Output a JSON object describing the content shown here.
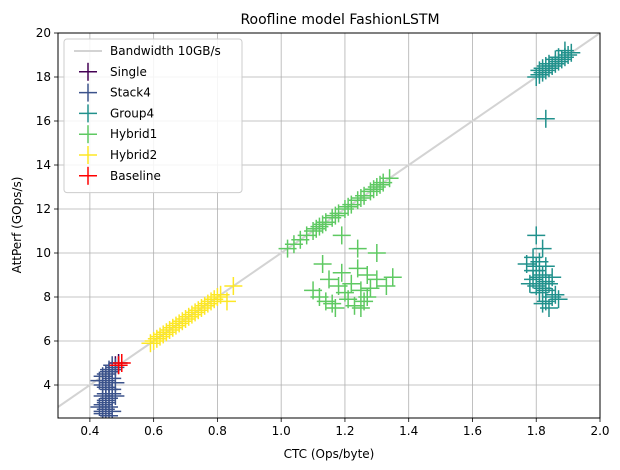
{
  "chart_data": {
    "type": "scatter",
    "title": "Roofline model FashionLSTM",
    "xlabel": "CTC (Ops/byte)",
    "ylabel": "AttPerf (GOps/s)",
    "xlim": [
      0.3,
      2.0
    ],
    "ylim": [
      2.5,
      20
    ],
    "xticks": [
      "0.4",
      "0.6",
      "0.8",
      "1.0",
      "1.2",
      "1.4",
      "1.6",
      "1.8",
      "2.0"
    ],
    "yticks": [
      "4",
      "6",
      "8",
      "10",
      "12",
      "14",
      "16",
      "18",
      "20"
    ],
    "grid": true,
    "legend_position": "top-left",
    "bandwidth_line": {
      "name": "Bandwidth 10GB/s",
      "slope": 10,
      "color": "#d3d3d3"
    },
    "series": [
      {
        "name": "Single",
        "color": "#440154",
        "points": [
          [
            0.48,
            4.9
          ],
          [
            0.49,
            5.0
          ]
        ]
      },
      {
        "name": "Stack4",
        "color": "#3b528b",
        "points": [
          [
            0.45,
            4.5
          ],
          [
            0.46,
            4.6
          ],
          [
            0.47,
            4.7
          ],
          [
            0.48,
            4.8
          ],
          [
            0.49,
            4.9
          ],
          [
            0.47,
            4.9
          ],
          [
            0.46,
            4.7
          ],
          [
            0.44,
            4.4
          ],
          [
            0.45,
            4.2
          ],
          [
            0.46,
            4.1
          ],
          [
            0.44,
            4.0
          ],
          [
            0.45,
            3.9
          ],
          [
            0.47,
            3.8
          ],
          [
            0.45,
            3.6
          ],
          [
            0.44,
            3.5
          ],
          [
            0.46,
            3.4
          ],
          [
            0.45,
            3.2
          ],
          [
            0.44,
            3.1
          ],
          [
            0.46,
            3.0
          ],
          [
            0.45,
            2.9
          ],
          [
            0.47,
            2.8
          ],
          [
            0.44,
            2.7
          ],
          [
            0.46,
            2.6
          ],
          [
            0.45,
            3.3
          ],
          [
            0.47,
            3.6
          ],
          [
            0.43,
            3.0
          ],
          [
            0.48,
            3.5
          ],
          [
            0.43,
            4.2
          ],
          [
            0.47,
            4.3
          ],
          [
            0.48,
            4.1
          ],
          [
            0.44,
            2.8
          ],
          [
            0.46,
            3.8
          ]
        ]
      },
      {
        "name": "Group4",
        "color": "#21918c",
        "points": [
          [
            1.8,
            18.0
          ],
          [
            1.81,
            18.1
          ],
          [
            1.82,
            18.2
          ],
          [
            1.83,
            18.3
          ],
          [
            1.84,
            18.4
          ],
          [
            1.85,
            18.5
          ],
          [
            1.86,
            18.6
          ],
          [
            1.87,
            18.7
          ],
          [
            1.88,
            18.8
          ],
          [
            1.89,
            18.9
          ],
          [
            1.9,
            19.0
          ],
          [
            1.91,
            19.1
          ],
          [
            1.89,
            19.2
          ],
          [
            1.86,
            18.8
          ],
          [
            1.84,
            18.6
          ],
          [
            1.87,
            18.9
          ],
          [
            1.83,
            18.5
          ],
          [
            1.82,
            18.4
          ],
          [
            1.81,
            18.3
          ],
          [
            1.83,
            16.1
          ],
          [
            1.8,
            10.8
          ],
          [
            1.82,
            10.2
          ],
          [
            1.79,
            9.8
          ],
          [
            1.81,
            9.6
          ],
          [
            1.77,
            9.5
          ],
          [
            1.83,
            9.4
          ],
          [
            1.8,
            9.2
          ],
          [
            1.82,
            9.0
          ],
          [
            1.79,
            8.8
          ],
          [
            1.84,
            8.6
          ],
          [
            1.8,
            8.5
          ],
          [
            1.83,
            8.3
          ],
          [
            1.81,
            8.2
          ],
          [
            1.85,
            8.0
          ],
          [
            1.87,
            7.9
          ],
          [
            1.82,
            7.7
          ],
          [
            1.84,
            7.5
          ],
          [
            1.78,
            8.6
          ],
          [
            1.81,
            8.9
          ],
          [
            1.83,
            8.7
          ],
          [
            1.8,
            9.4
          ],
          [
            1.85,
            8.9
          ],
          [
            1.82,
            8.4
          ],
          [
            1.79,
            9.2
          ],
          [
            1.86,
            8.1
          ],
          [
            1.83,
            7.8
          ]
        ]
      },
      {
        "name": "Hybrid1",
        "color": "#5ec962",
        "points": [
          [
            1.08,
            10.8
          ],
          [
            1.1,
            11.0
          ],
          [
            1.12,
            11.2
          ],
          [
            1.14,
            11.4
          ],
          [
            1.16,
            11.6
          ],
          [
            1.18,
            11.8
          ],
          [
            1.2,
            12.0
          ],
          [
            1.22,
            12.2
          ],
          [
            1.24,
            12.4
          ],
          [
            1.26,
            12.6
          ],
          [
            1.28,
            12.8
          ],
          [
            1.3,
            13.0
          ],
          [
            1.32,
            13.2
          ],
          [
            1.34,
            13.4
          ],
          [
            1.11,
            11.1
          ],
          [
            1.13,
            11.3
          ],
          [
            1.17,
            11.7
          ],
          [
            1.21,
            12.1
          ],
          [
            1.25,
            12.5
          ],
          [
            1.29,
            12.9
          ],
          [
            1.31,
            13.1
          ],
          [
            1.06,
            10.6
          ],
          [
            1.04,
            10.4
          ],
          [
            1.02,
            10.2
          ],
          [
            1.19,
            10.8
          ],
          [
            1.24,
            10.2
          ],
          [
            1.13,
            9.5
          ],
          [
            1.3,
            10.0
          ],
          [
            1.15,
            8.8
          ],
          [
            1.18,
            8.5
          ],
          [
            1.2,
            8.2
          ],
          [
            1.22,
            8.6
          ],
          [
            1.25,
            8.3
          ],
          [
            1.27,
            8.0
          ],
          [
            1.12,
            8.0
          ],
          [
            1.14,
            7.8
          ],
          [
            1.16,
            7.7
          ],
          [
            1.21,
            7.9
          ],
          [
            1.23,
            7.6
          ],
          [
            1.26,
            7.8
          ],
          [
            1.28,
            8.4
          ],
          [
            1.3,
            8.8
          ],
          [
            1.33,
            8.5
          ],
          [
            1.35,
            8.9
          ],
          [
            1.1,
            8.3
          ],
          [
            1.19,
            9.1
          ],
          [
            1.24,
            9.3
          ],
          [
            1.27,
            9.0
          ],
          [
            1.17,
            7.5
          ],
          [
            1.25,
            7.5
          ]
        ]
      },
      {
        "name": "Hybrid2",
        "color": "#fde725",
        "points": [
          [
            0.59,
            5.9
          ],
          [
            0.61,
            6.1
          ],
          [
            0.63,
            6.3
          ],
          [
            0.65,
            6.5
          ],
          [
            0.67,
            6.7
          ],
          [
            0.69,
            6.9
          ],
          [
            0.71,
            7.1
          ],
          [
            0.73,
            7.3
          ],
          [
            0.75,
            7.5
          ],
          [
            0.77,
            7.7
          ],
          [
            0.79,
            7.9
          ],
          [
            0.81,
            8.1
          ],
          [
            0.62,
            6.2
          ],
          [
            0.64,
            6.4
          ],
          [
            0.66,
            6.6
          ],
          [
            0.68,
            6.8
          ],
          [
            0.7,
            7.0
          ],
          [
            0.72,
            7.2
          ],
          [
            0.74,
            7.4
          ],
          [
            0.76,
            7.6
          ],
          [
            0.78,
            7.8
          ],
          [
            0.8,
            8.0
          ],
          [
            0.85,
            8.5
          ],
          [
            0.83,
            7.8
          ],
          [
            0.6,
            6.0
          ]
        ]
      },
      {
        "name": "Baseline",
        "color": "#ff0000",
        "points": [
          [
            0.49,
            4.9
          ],
          [
            0.5,
            5.0
          ]
        ]
      }
    ]
  }
}
